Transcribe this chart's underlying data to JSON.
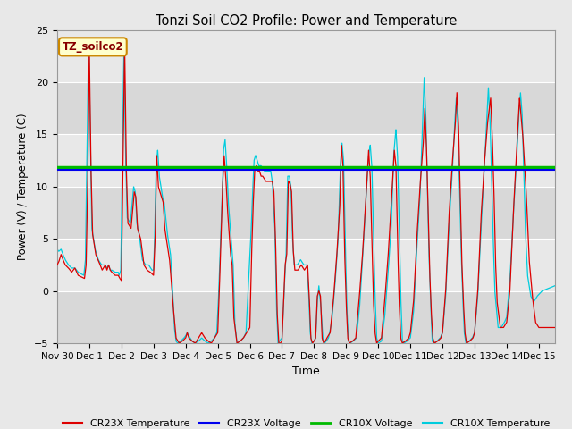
{
  "title": "Tonzi Soil CO2 Profile: Power and Temperature",
  "xlabel": "Time",
  "ylabel": "Power (V) / Temperature (C)",
  "ylim": [
    -5,
    25
  ],
  "xlim": [
    0,
    15.5
  ],
  "xtick_labels": [
    "Nov 30",
    "Dec 1",
    "Dec 2",
    "Dec 3",
    "Dec 4",
    "Dec 5",
    "Dec 6",
    "Dec 7",
    "Dec 8",
    "Dec 9",
    "Dec 10",
    "Dec 11",
    "Dec 12",
    "Dec 13",
    "Dec 14",
    "Dec 15"
  ],
  "xtick_positions": [
    0,
    1,
    2,
    3,
    4,
    5,
    6,
    7,
    8,
    9,
    10,
    11,
    12,
    13,
    14,
    15
  ],
  "ytick_positions": [
    -5,
    0,
    5,
    10,
    15,
    20,
    25
  ],
  "cr23x_voltage_value": 11.65,
  "cr10x_voltage_value": 11.85,
  "cr23x_voltage_color": "#0000ee",
  "cr10x_voltage_color": "#00bb00",
  "cr23x_temp_color": "#dd0000",
  "cr10x_temp_color": "#00ccdd",
  "bg_color": "#e8e8e8",
  "plot_bg_light": "#e8e8e8",
  "plot_bg_dark": "#d8d8d8",
  "annotation_text": "TZ_soilco2",
  "annotation_bg": "#ffffcc",
  "annotation_border": "#cc8800",
  "legend_items": [
    "CR23X Temperature",
    "CR23X Voltage",
    "CR10X Voltage",
    "CR10X Temperature"
  ],
  "legend_colors": [
    "#dd0000",
    "#0000ee",
    "#00bb00",
    "#00ccdd"
  ]
}
